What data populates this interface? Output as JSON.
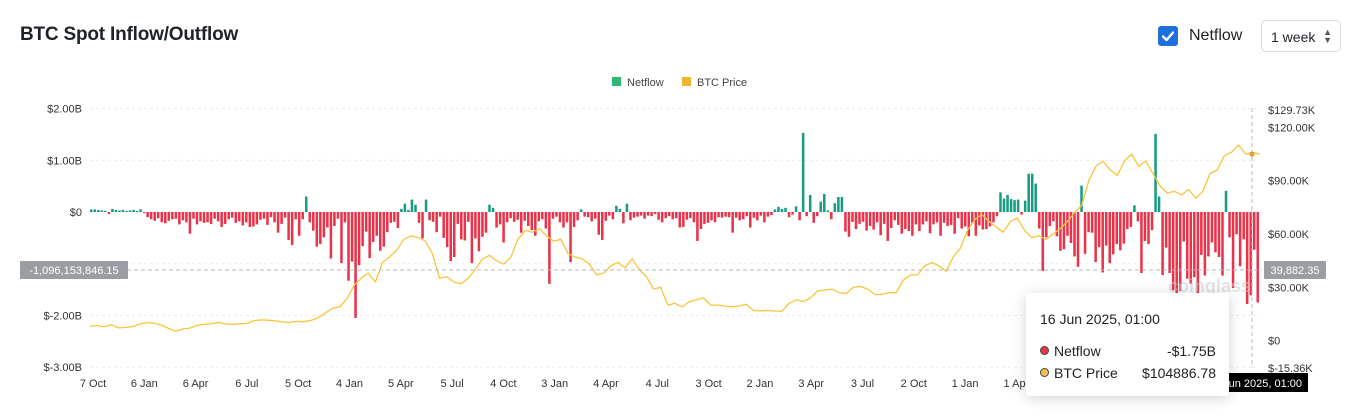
{
  "header": {
    "title": "BTC Spot Inflow/Outflow",
    "netflow_toggle_label": "Netflow",
    "period_select": "1 week"
  },
  "watermark": "coinglass",
  "cursor": {
    "left_value": "-1,096,153,846.15",
    "right_value": "39,882.35",
    "x_label": "16 Jun 2025, 01:00"
  },
  "tooltip": {
    "date": "16 Jun 2025, 01:00",
    "rows": [
      {
        "name": "Netflow",
        "value": "-$1.75B",
        "color": "#e8344a"
      },
      {
        "name": "BTC Price",
        "value": "$104886.78",
        "color": "#f2c14e"
      }
    ]
  },
  "chart_data": {
    "type": "bar",
    "title": "BTC Spot Inflow/Outflow",
    "legend": [
      {
        "name": "Netflow",
        "color": "#2eb872"
      },
      {
        "name": "BTC Price",
        "color": "#f0b431"
      }
    ],
    "legend_position": "top-center",
    "colors": {
      "netflow_positive": "#1a9c84",
      "netflow_negative": "#e8344a",
      "price_line": "#f8c53a"
    },
    "x_tick_labels": [
      "7 Oct",
      "6 Jan",
      "6 Apr",
      "6 Jul",
      "5 Oct",
      "4 Jan",
      "5 Apr",
      "5 Jul",
      "4 Oct",
      "3 Jan",
      "4 Apr",
      "4 Jul",
      "3 Oct",
      "2 Jan",
      "3 Apr",
      "3 Jul",
      "2 Oct",
      "1 Jan",
      "1 Apr"
    ],
    "x_range": [
      "2019-10-07",
      "2025-06-16"
    ],
    "y_left_ticks": [
      2,
      1,
      0,
      -2,
      -3
    ],
    "y_left_tick_labels": [
      "$2.00B",
      "$1.00B",
      "$0",
      "$-2.00B",
      "$-3.00B"
    ],
    "y_left_range": [
      -3.0,
      2.0
    ],
    "y_right_ticks": [
      129730,
      120000,
      90000,
      60000,
      30000,
      0,
      -15360
    ],
    "y_right_tick_labels": [
      "$129.73K",
      "$120.00K",
      "$90.00K",
      "$60.00K",
      "$30.00K",
      "$0",
      "$-15.36K"
    ],
    "y_right_range": [
      -15360,
      129730
    ],
    "grid": true,
    "series": [
      {
        "name": "Netflow",
        "unit": "$B",
        "values": [
          0.05,
          0.05,
          0.04,
          0.03,
          0.02,
          -0.04,
          0.06,
          0.04,
          0.03,
          0.04,
          0.02,
          0.03,
          0.04,
          0.02,
          0.05,
          -0.02,
          -0.1,
          -0.14,
          -0.17,
          -0.12,
          -0.2,
          -0.22,
          -0.17,
          -0.14,
          -0.13,
          -0.24,
          -0.16,
          -0.2,
          -0.42,
          -0.13,
          -0.24,
          -0.18,
          -0.21,
          -0.2,
          -0.23,
          -0.13,
          -0.18,
          -0.29,
          -0.23,
          -0.14,
          -0.11,
          -0.21,
          -0.18,
          -0.26,
          -0.2,
          -0.29,
          -0.28,
          -0.24,
          -0.15,
          -0.13,
          -0.25,
          -0.1,
          -0.2,
          -0.4,
          -0.23,
          -0.11,
          -0.54,
          -0.64,
          -0.14,
          -0.46,
          -0.14,
          0.3,
          -0.2,
          -0.36,
          -0.67,
          -0.62,
          -0.49,
          -0.3,
          -0.9,
          -0.27,
          -0.13,
          -0.99,
          -0.2,
          -1.33,
          -0.96,
          -2.05,
          -1.03,
          -0.66,
          -0.38,
          -0.89,
          -0.58,
          -0.46,
          -0.75,
          -0.67,
          -0.39,
          -0.21,
          -0.19,
          -0.31,
          0.06,
          0.16,
          0.04,
          0.24,
          0.14,
          -0.21,
          -0.51,
          0.24,
          -0.16,
          -0.19,
          -0.39,
          -0.09,
          -0.5,
          -0.68,
          -0.95,
          -0.87,
          -0.23,
          -0.53,
          -0.55,
          -0.19,
          -0.99,
          -0.51,
          -0.76,
          -0.48,
          -0.4,
          0.14,
          0.08,
          -0.3,
          -0.24,
          -0.59,
          -0.2,
          -0.12,
          -0.19,
          -0.15,
          -0.4,
          -0.17,
          -0.27,
          -0.35,
          -0.46,
          -0.18,
          -0.14,
          -0.32,
          -1.39,
          -0.13,
          -0.09,
          -0.2,
          -0.3,
          -0.2,
          -0.97,
          -0.29,
          -0.16,
          0.05,
          -0.09,
          -0.1,
          -0.18,
          -0.13,
          -0.44,
          -0.54,
          -0.17,
          -0.07,
          -0.14,
          0.12,
          0.06,
          -0.22,
          0.16,
          -0.16,
          -0.11,
          -0.09,
          -0.07,
          -0.13,
          -0.07,
          -0.08,
          -0.04,
          -0.15,
          -0.2,
          -0.12,
          -0.08,
          -0.14,
          -0.12,
          -0.3,
          -0.29,
          -0.15,
          -0.12,
          -0.2,
          -0.56,
          -0.33,
          -0.23,
          -0.21,
          -0.16,
          -0.2,
          -0.1,
          -0.11,
          -0.09,
          -0.1,
          -0.4,
          -0.11,
          -0.16,
          -0.14,
          -0.08,
          -0.3,
          -0.11,
          -0.16,
          -0.07,
          -0.2,
          -0.09,
          -0.06,
          0.05,
          0.1,
          0.06,
          0.08,
          -0.1,
          -0.05,
          0.11,
          -0.16,
          1.53,
          -0.08,
          0.33,
          -0.21,
          -0.08,
          0.2,
          0.35,
          0.03,
          -0.14,
          0.17,
          0.29,
          0.29,
          -0.38,
          -0.48,
          -0.19,
          -0.33,
          -0.23,
          -0.19,
          -0.36,
          -0.27,
          -0.34,
          -0.2,
          -0.45,
          -0.23,
          -0.56,
          -0.31,
          -0.16,
          -0.25,
          -0.42,
          -0.33,
          -0.37,
          -0.46,
          -0.24,
          -0.37,
          -0.24,
          -0.18,
          -0.41,
          -0.24,
          -0.2,
          -0.46,
          -0.21,
          -0.27,
          -0.25,
          -0.42,
          -0.12,
          -0.32,
          -0.28,
          -0.47,
          -0.21,
          -0.46,
          -0.26,
          -0.34,
          -0.33,
          -0.28,
          -0.2,
          -0.08,
          0.38,
          0.26,
          0.33,
          0.25,
          0.23,
          0.24,
          -0.05,
          0.22,
          0.74,
          0.74,
          0.55,
          -0.32,
          -1.14,
          -0.49,
          -0.27,
          -0.18,
          -0.47,
          -0.75,
          -0.72,
          -0.46,
          -0.6,
          -0.86,
          -1.06,
          0.51,
          -0.81,
          -0.39,
          -0.4,
          -0.97,
          -0.68,
          -1.17,
          -0.65,
          -0.99,
          -0.82,
          -0.62,
          -0.74,
          -0.61,
          -0.33,
          -0.29,
          0.13,
          -0.18,
          -1.18,
          -0.56,
          -0.62,
          -0.35,
          1.51,
          0.3,
          -1.22,
          -0.69,
          -1.18,
          -1.51,
          -2.04,
          -1.53,
          -0.57,
          -1.29,
          -1.39,
          -1.26,
          -2.29,
          -0.83,
          -1.23,
          -0.86,
          -0.59,
          -0.78,
          -0.87,
          -1.23,
          0.41,
          -0.49,
          -1.47,
          -0.43,
          -1.05,
          -0.53,
          -1.78,
          -1.61,
          -0.73,
          -1.75
        ]
      },
      {
        "name": "BTC Price",
        "unit": "USD",
        "values": [
          8200,
          8500,
          7800,
          9000,
          7200,
          7400,
          8000,
          9300,
          10200,
          9800,
          8800,
          6900,
          5300,
          6600,
          7100,
          8600,
          9200,
          9500,
          10300,
          9400,
          9200,
          9500,
          9700,
          11300,
          11700,
          11500,
          11200,
          10500,
          10300,
          10900,
          10700,
          11400,
          13000,
          15600,
          18200,
          19000,
          23500,
          31000,
          35000,
          38000,
          33000,
          44000,
          47000,
          51000,
          57000,
          59000,
          58000,
          56000,
          49000,
          35000,
          36000,
          33000,
          32000,
          35000,
          40000,
          46000,
          48000,
          45000,
          43000,
          47000,
          57000,
          62000,
          61000,
          63000,
          59000,
          56000,
          57000,
          49000,
          47000,
          46000,
          43000,
          37000,
          38000,
          42000,
          44000,
          41000,
          46000,
          40000,
          36000,
          29000,
          30000,
          20000,
          21000,
          19000,
          22000,
          23000,
          24000,
          20000,
          20000,
          19500,
          19000,
          19500,
          20500,
          17000,
          16800,
          17000,
          16700,
          16500,
          21000,
          23000,
          22000,
          24000,
          28000,
          28500,
          29000,
          27000,
          26500,
          30000,
          30500,
          29000,
          26000,
          26000,
          27000,
          27000,
          34000,
          37000,
          37000,
          42000,
          44000,
          42000,
          39000,
          47000,
          52000,
          62000,
          68000,
          71000,
          67000,
          64000,
          61000,
          67000,
          69000,
          62000,
          58000,
          59000,
          57000,
          60000,
          63000,
          67000,
          72000,
          76000,
          90000,
          98000,
          101000,
          96000,
          93000,
          101000,
          105000,
          98000,
          101000,
          94000,
          87000,
          83000,
          84000,
          82000,
          85000,
          80000,
          84000,
          94000,
          96000,
          104000,
          106000,
          110000,
          105000,
          106000,
          104886.78
        ]
      }
    ]
  }
}
